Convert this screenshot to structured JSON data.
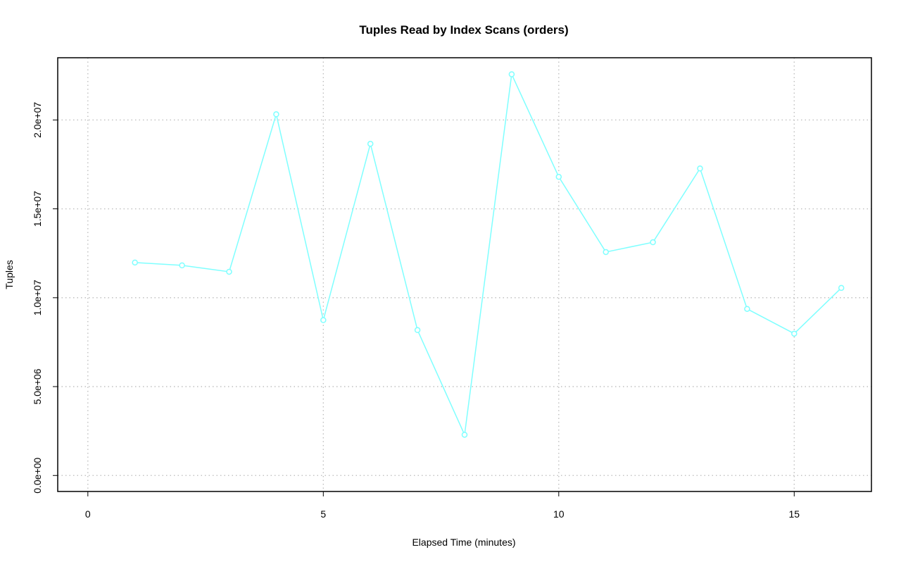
{
  "chart_data": {
    "type": "line",
    "title": "Tuples Read by Index Scans (orders)",
    "x_label": "Elapsed Time (minutes)",
    "y_label": "Tuples",
    "x": [
      1,
      2,
      3,
      4,
      5,
      6,
      7,
      8,
      9,
      10,
      11,
      12,
      13,
      14,
      15,
      16
    ],
    "series": [
      {
        "color": "#7fffff",
        "values": [
          11980000,
          11820000,
          11460000,
          20320000,
          8740000,
          18660000,
          8180000,
          2290000,
          22570000,
          16800000,
          12570000,
          13120000,
          17270000,
          9370000,
          7980000,
          10550000
        ]
      }
    ],
    "xlim": [
      -0.64,
      16.64
    ],
    "ylim": [
      -900000,
      23500000
    ],
    "xticks": [
      0,
      5,
      10,
      15
    ],
    "yticks": [
      {
        "value": 0,
        "label": "0.0e+00"
      },
      {
        "value": 5000000,
        "label": "5.0e+06"
      },
      {
        "value": 10000000,
        "label": "1.0e+07"
      },
      {
        "value": 15000000,
        "label": "1.5e+07"
      },
      {
        "value": 20000000,
        "label": "2.0e+07"
      }
    ],
    "grid": true
  }
}
